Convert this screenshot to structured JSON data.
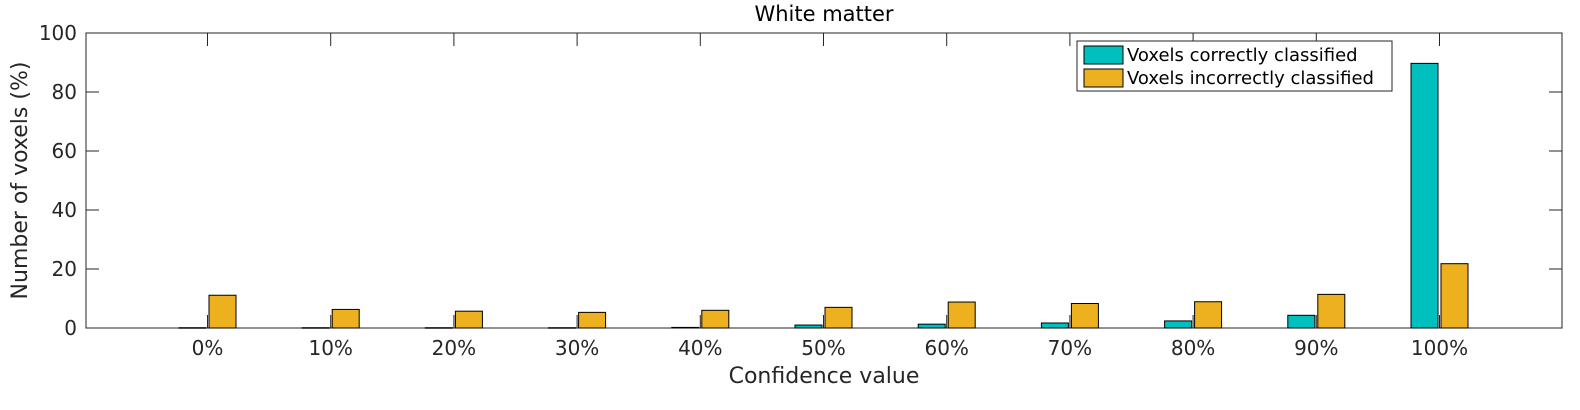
{
  "chart_data": {
    "type": "bar",
    "title": "White matter",
    "xlabel": "Confidence value",
    "ylabel": "Number of voxels (%)",
    "ylim": [
      0,
      100
    ],
    "yticks": [
      "0",
      "20",
      "40",
      "60",
      "80",
      "100"
    ],
    "categories": [
      "0%",
      "10%",
      "20%",
      "30%",
      "40%",
      "50%",
      "60%",
      "70%",
      "80%",
      "90%",
      "100%"
    ],
    "series": [
      {
        "name": "Voxels correctly classified",
        "color": "#00BFBF",
        "values": [
          0.1,
          0.1,
          0.1,
          0.1,
          0.2,
          1.0,
          1.3,
          1.7,
          2.4,
          4.3,
          89.7
        ]
      },
      {
        "name": "Voxels incorrectly classified",
        "color": "#EDB120",
        "values": [
          11.1,
          6.3,
          5.7,
          5.3,
          6.0,
          7.0,
          8.8,
          8.3,
          8.9,
          11.4,
          21.8
        ]
      }
    ],
    "legend_position": "top-right",
    "grid": false
  }
}
